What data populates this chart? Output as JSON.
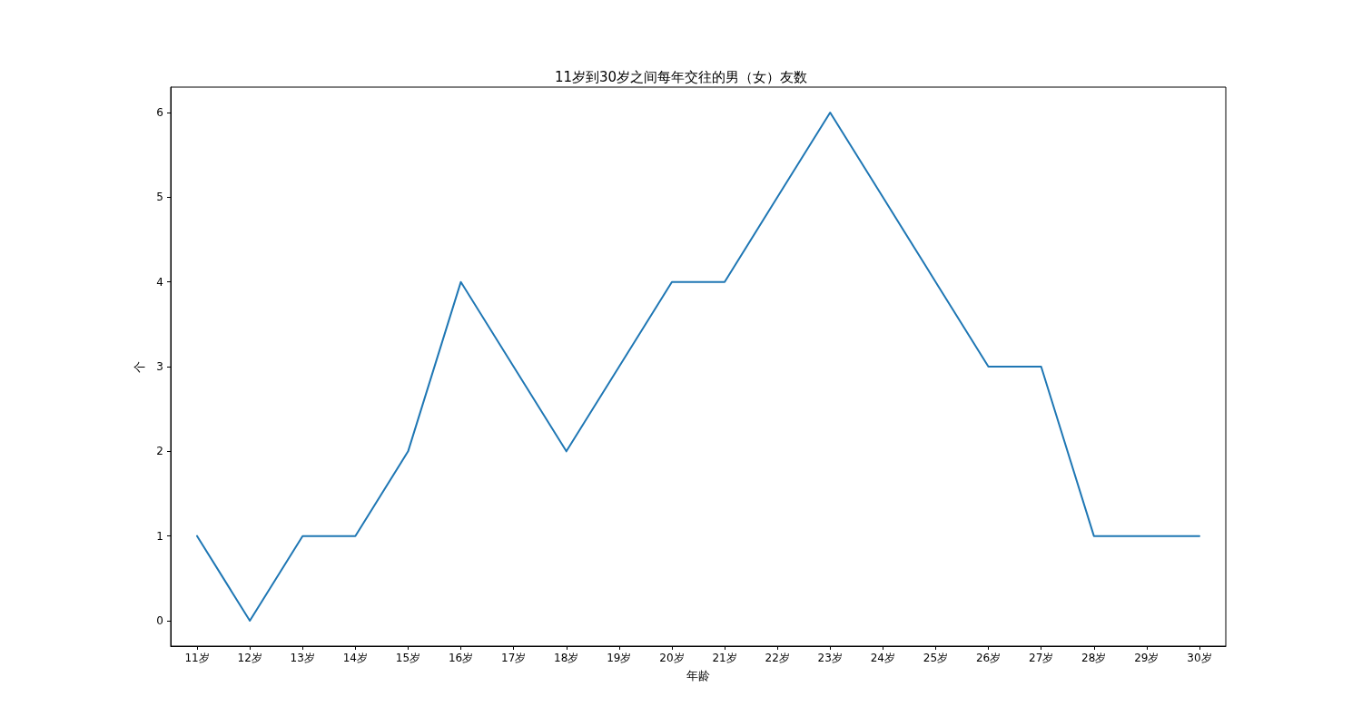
{
  "chart_data": {
    "type": "line",
    "title": "11岁到30岁之间每年交往的男（女）友数",
    "xlabel": "年龄",
    "ylabel": "个",
    "categories": [
      "11岁",
      "12岁",
      "13岁",
      "14岁",
      "15岁",
      "16岁",
      "17岁",
      "18岁",
      "19岁",
      "20岁",
      "21岁",
      "22岁",
      "23岁",
      "24岁",
      "25岁",
      "26岁",
      "27岁",
      "28岁",
      "29岁",
      "30岁"
    ],
    "series": [
      {
        "color": "#1f77b4",
        "values": [
          1,
          0,
          1,
          1,
          2,
          4,
          3,
          2,
          3,
          4,
          4,
          5,
          6,
          5,
          4,
          3,
          3,
          1,
          1,
          1
        ]
      }
    ],
    "ylim": [
      -0.3,
      6.3
    ],
    "yticks": [
      0,
      1,
      2,
      3,
      4,
      5,
      6
    ],
    "grid": false,
    "marker": "none",
    "line_style": "solid"
  }
}
